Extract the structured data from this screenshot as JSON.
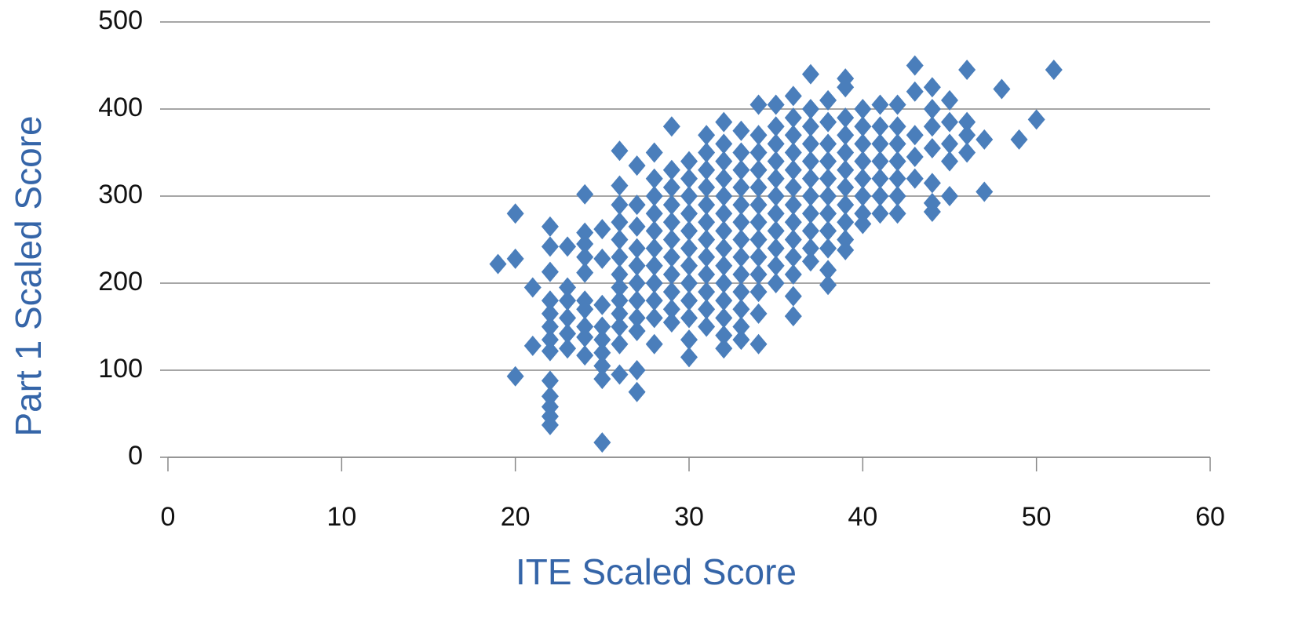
{
  "chart_data": {
    "type": "scatter",
    "xlabel": "ITE Scaled Score",
    "ylabel": "Part 1 Scaled Score",
    "xlim": [
      0,
      60
    ],
    "xticks": [
      0,
      10,
      20,
      30,
      40,
      50,
      60
    ],
    "ylim": [
      0,
      500
    ],
    "yticks": [
      0,
      100,
      200,
      300,
      400,
      500
    ],
    "grid": true,
    "series": [
      {
        "color": "#4a7ebb",
        "x": [
          19,
          20,
          20,
          20,
          21,
          21,
          22,
          22,
          22,
          22,
          22,
          22,
          22,
          22,
          22,
          22,
          22,
          22,
          22,
          23,
          23,
          23,
          23,
          23,
          23,
          24,
          24,
          24,
          24,
          24,
          24,
          24,
          24,
          24,
          24,
          25,
          25,
          25,
          25,
          25,
          25,
          25,
          25,
          25,
          26,
          26,
          26,
          26,
          26,
          26,
          26,
          26,
          26,
          26,
          26,
          26,
          26,
          27,
          27,
          27,
          27,
          27,
          27,
          27,
          27,
          27,
          27,
          27,
          28,
          28,
          28,
          28,
          28,
          28,
          28,
          28,
          28,
          28,
          28,
          29,
          29,
          29,
          29,
          29,
          29,
          29,
          29,
          29,
          29,
          29,
          30,
          30,
          30,
          30,
          30,
          30,
          30,
          30,
          30,
          30,
          30,
          30,
          31,
          31,
          31,
          31,
          31,
          31,
          31,
          31,
          31,
          31,
          31,
          31,
          32,
          32,
          32,
          32,
          32,
          32,
          32,
          32,
          32,
          32,
          32,
          32,
          32,
          32,
          33,
          33,
          33,
          33,
          33,
          33,
          33,
          33,
          33,
          33,
          33,
          33,
          33,
          34,
          34,
          34,
          34,
          34,
          34,
          34,
          34,
          34,
          34,
          34,
          34,
          34,
          35,
          35,
          35,
          35,
          35,
          35,
          35,
          35,
          35,
          35,
          35,
          36,
          36,
          36,
          36,
          36,
          36,
          36,
          36,
          36,
          36,
          36,
          36,
          36,
          37,
          37,
          37,
          37,
          37,
          37,
          37,
          37,
          37,
          37,
          37,
          38,
          38,
          38,
          38,
          38,
          38,
          38,
          38,
          38,
          38,
          38,
          39,
          39,
          39,
          39,
          39,
          39,
          39,
          39,
          39,
          39,
          39,
          40,
          40,
          40,
          40,
          40,
          40,
          40,
          40,
          41,
          41,
          41,
          41,
          41,
          41,
          41,
          42,
          42,
          42,
          42,
          42,
          42,
          42,
          43,
          43,
          43,
          43,
          43,
          44,
          44,
          44,
          44,
          44,
          44,
          44,
          45,
          45,
          45,
          45,
          45,
          46,
          46,
          46,
          46,
          47,
          47,
          48,
          49,
          50,
          51
        ],
        "values": [
          222,
          280,
          228,
          93,
          195,
          128,
          265,
          242,
          213,
          180,
          165,
          150,
          135,
          122,
          88,
          70,
          58,
          47,
          37,
          242,
          195,
          180,
          160,
          142,
          125,
          302,
          258,
          245,
          230,
          212,
          180,
          170,
          150,
          138,
          117,
          262,
          228,
          175,
          150,
          135,
          120,
          105,
          90,
          17,
          352,
          312,
          290,
          270,
          250,
          230,
          210,
          195,
          180,
          165,
          150,
          130,
          95,
          335,
          290,
          265,
          240,
          220,
          200,
          180,
          160,
          145,
          100,
          75,
          350,
          320,
          300,
          280,
          260,
          240,
          220,
          200,
          180,
          160,
          130,
          380,
          330,
          310,
          290,
          270,
          250,
          230,
          210,
          190,
          170,
          155,
          340,
          320,
          300,
          280,
          260,
          240,
          220,
          200,
          180,
          160,
          135,
          115,
          370,
          350,
          330,
          310,
          290,
          270,
          250,
          230,
          210,
          190,
          170,
          150,
          385,
          360,
          340,
          320,
          300,
          280,
          260,
          240,
          220,
          200,
          180,
          160,
          140,
          125,
          375,
          350,
          330,
          310,
          290,
          270,
          250,
          230,
          210,
          190,
          170,
          150,
          135,
          405,
          370,
          350,
          330,
          310,
          290,
          270,
          250,
          230,
          210,
          190,
          165,
          130,
          405,
          380,
          360,
          340,
          320,
          300,
          280,
          260,
          240,
          220,
          200,
          415,
          390,
          370,
          350,
          330,
          310,
          290,
          270,
          250,
          230,
          210,
          185,
          162,
          440,
          400,
          380,
          360,
          340,
          320,
          300,
          280,
          260,
          240,
          225,
          410,
          385,
          360,
          340,
          320,
          300,
          280,
          260,
          240,
          215,
          198,
          435,
          425,
          390,
          370,
          350,
          330,
          310,
          290,
          270,
          250,
          238,
          400,
          380,
          360,
          340,
          320,
          300,
          280,
          268,
          405,
          380,
          360,
          340,
          320,
          300,
          280,
          405,
          380,
          360,
          340,
          320,
          300,
          280,
          450,
          420,
          370,
          345,
          320,
          425,
          400,
          380,
          355,
          315,
          292,
          282,
          410,
          385,
          360,
          340,
          300,
          445,
          385,
          370,
          350,
          365,
          305,
          423,
          365,
          388,
          445
        ]
      }
    ]
  }
}
